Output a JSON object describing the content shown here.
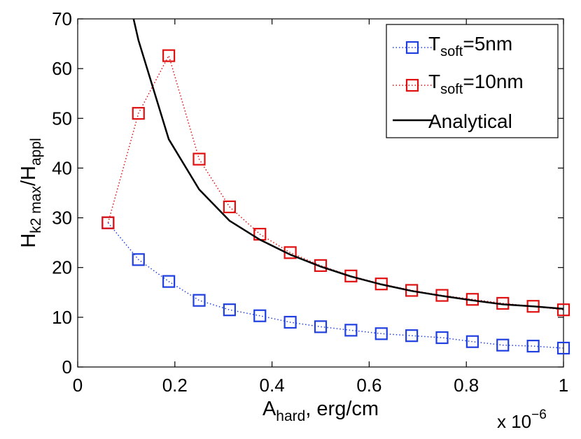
{
  "chart_data": {
    "type": "line",
    "title": "",
    "xlabel": {
      "main": "A",
      "sub": "hard",
      "rest": ", erg/cm"
    },
    "ylabel": {
      "p1": "H",
      "s1": "k2 max",
      "p2": "/H",
      "s2": "appl"
    },
    "x_multiplier": {
      "base": "x 10",
      "exp": "−6"
    },
    "xlim": [
      0,
      1
    ],
    "ylim": [
      0,
      70
    ],
    "xticks": [
      "0",
      "0.2",
      "0.4",
      "0.6",
      "0.8",
      "1"
    ],
    "xtick_values": [
      0,
      0.2,
      0.4,
      0.6,
      0.8,
      1
    ],
    "yticks": [
      "0",
      "10",
      "20",
      "30",
      "40",
      "50",
      "60",
      "70"
    ],
    "ytick_values": [
      0,
      10,
      20,
      30,
      40,
      50,
      60,
      70
    ],
    "legend_position": "top-right",
    "series": [
      {
        "name": "T_soft=5nm",
        "legend": {
          "main": "T",
          "sub": "soft",
          "rest": "=5nm"
        },
        "color": "#1f3fe0",
        "marker": "square",
        "line": "dotted",
        "x": [
          0.0625,
          0.125,
          0.1875,
          0.25,
          0.3125,
          0.375,
          0.4375,
          0.5,
          0.5625,
          0.625,
          0.6875,
          0.75,
          0.8125,
          0.875,
          0.9375,
          1.0
        ],
        "values": [
          29,
          21.6,
          17.2,
          13.4,
          11.5,
          10.3,
          9.0,
          8.1,
          7.4,
          6.7,
          6.3,
          5.9,
          5.1,
          4.4,
          4.2,
          3.8
        ]
      },
      {
        "name": "T_soft=10nm",
        "legend": {
          "main": "T",
          "sub": "soft",
          "rest": "=10nm"
        },
        "color": "#e01010",
        "marker": "square",
        "line": "dotted",
        "x": [
          0.0625,
          0.125,
          0.1875,
          0.25,
          0.3125,
          0.375,
          0.4375,
          0.5,
          0.5625,
          0.625,
          0.6875,
          0.75,
          0.8125,
          0.875,
          0.9375,
          1.0
        ],
        "values": [
          29,
          51,
          62.6,
          41.8,
          32.2,
          26.7,
          23.0,
          20.4,
          18.3,
          16.7,
          15.4,
          14.4,
          13.6,
          12.8,
          12.2,
          11.5
        ]
      },
      {
        "name": "Analytical",
        "legend": {
          "main": "Analytical",
          "sub": "",
          "rest": ""
        },
        "color": "#000000",
        "marker": "none",
        "line": "solid",
        "x": [
          0.115,
          0.125,
          0.1875,
          0.25,
          0.3125,
          0.375,
          0.4375,
          0.5,
          0.5625,
          0.625,
          0.6875,
          0.75,
          0.8125,
          0.875,
          0.9375,
          1.0
        ],
        "values": [
          70,
          65.7,
          45.8,
          35.7,
          29.4,
          25.6,
          22.6,
          20.2,
          18.2,
          16.6,
          15.3,
          14.3,
          13.4,
          12.6,
          12.2,
          11.7
        ]
      }
    ]
  }
}
